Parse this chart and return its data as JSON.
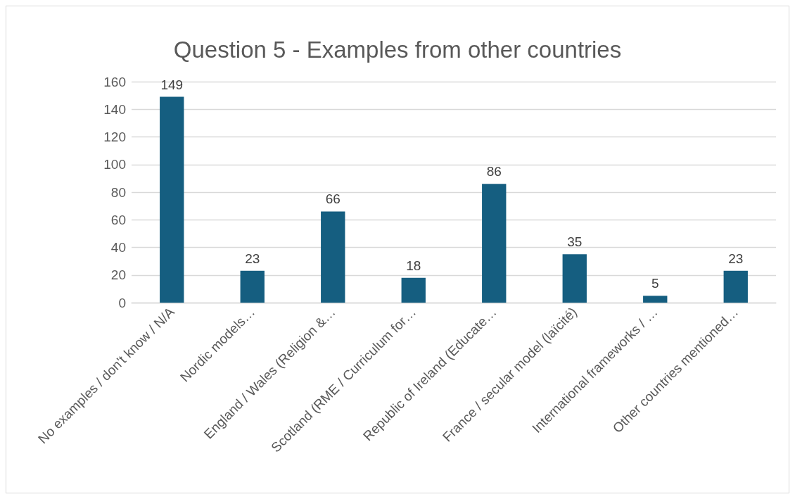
{
  "chart_data": {
    "type": "bar",
    "title": "Question 5 - Examples from other countries",
    "categories": [
      "No examples / don't know / N/A",
      "Nordic models…",
      "England / Wales (Religion &…",
      "Scotland (RME / Curriculum for…",
      "Republic of Ireland (Educate…",
      "France / secular model (laïcité)",
      "International frameworks / …",
      "Other countries mentioned…"
    ],
    "values": [
      149,
      23,
      66,
      18,
      86,
      35,
      5,
      23
    ],
    "color": "#155e80",
    "ylim": [
      0,
      160
    ],
    "yticks": [
      0,
      20,
      40,
      60,
      80,
      100,
      120,
      140,
      160
    ],
    "grid": "y",
    "data_labels": true
  }
}
